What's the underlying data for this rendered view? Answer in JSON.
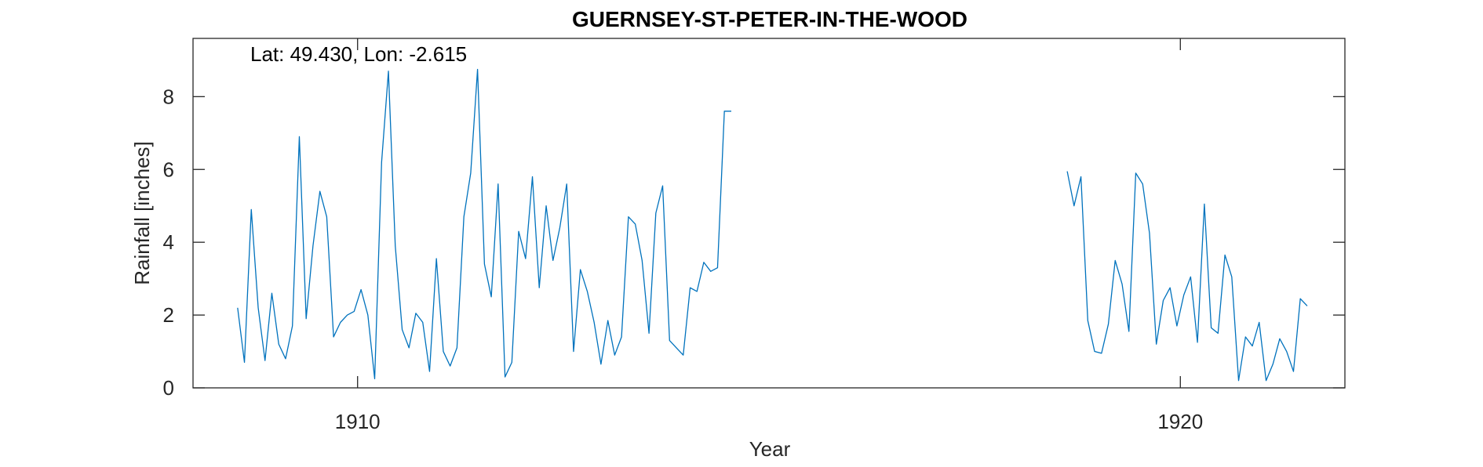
{
  "chart_data": {
    "type": "line",
    "title": "GUERNSEY-ST-PETER-IN-THE-WOOD",
    "annotation": "Lat: 49.430, Lon: -2.615",
    "xlabel": "Year",
    "ylabel": "Rainfall [inches]",
    "xlim": [
      1908.0,
      1922.0
    ],
    "ylim": [
      0,
      9.6
    ],
    "xticks": [
      1910,
      1920
    ],
    "xtick_labels": [
      "1910",
      "1920"
    ],
    "yticks": [
      0,
      2,
      4,
      6,
      8
    ],
    "ytick_labels": [
      "0",
      "2",
      "4",
      "6",
      "8"
    ],
    "grid": false,
    "box": true,
    "series": [
      {
        "color": "#0072BD",
        "segments": [
          {
            "x": [
              1908.542,
              1908.625,
              1908.708,
              1908.792,
              1908.875,
              1908.958,
              1909.042,
              1909.125,
              1909.208,
              1909.292,
              1909.375,
              1909.458,
              1909.542,
              1909.625,
              1909.708,
              1909.792,
              1909.875,
              1909.958,
              1910.042,
              1910.125,
              1910.208,
              1910.292,
              1910.375,
              1910.458,
              1910.542,
              1910.625,
              1910.708,
              1910.792,
              1910.875,
              1910.958,
              1911.042,
              1911.125,
              1911.208,
              1911.292,
              1911.375,
              1911.458,
              1911.542,
              1911.625,
              1911.708,
              1911.792,
              1911.875,
              1911.958,
              1912.042,
              1912.125,
              1912.208,
              1912.292,
              1912.375,
              1912.458,
              1912.542,
              1912.625,
              1912.708,
              1912.792,
              1912.875,
              1912.958,
              1913.042,
              1913.125,
              1913.208,
              1913.292,
              1913.375,
              1913.458,
              1913.542,
              1913.625,
              1913.708,
              1913.792,
              1913.875,
              1913.958,
              1914.042,
              1914.125,
              1914.208,
              1914.292,
              1914.375,
              1914.458,
              1914.542
            ],
            "y": [
              2.2,
              0.7,
              4.9,
              2.2,
              0.75,
              2.6,
              1.2,
              0.8,
              1.7,
              6.9,
              1.9,
              3.9,
              5.4,
              4.7,
              1.4,
              1.8,
              2.0,
              2.1,
              2.7,
              2.0,
              0.25,
              6.2,
              8.7,
              3.9,
              1.6,
              1.1,
              2.05,
              1.8,
              0.45,
              3.55,
              1.0,
              0.6,
              1.1,
              4.7,
              5.9,
              8.75,
              3.4,
              2.5,
              5.6,
              0.3,
              0.7,
              4.3,
              3.55,
              5.8,
              2.75,
              5.0,
              3.5,
              4.4,
              5.6,
              1.0,
              3.25,
              2.65,
              1.8,
              0.65,
              1.85,
              0.9,
              1.4,
              4.7,
              4.5,
              3.5,
              1.5,
              4.8,
              5.55,
              1.3,
              1.1,
              0.9,
              2.75,
              2.65,
              3.45,
              3.2,
              3.3,
              7.6,
              7.6
            ]
          },
          {
            "x": [
              1918.625,
              1918.708,
              1918.792,
              1918.875,
              1918.958,
              1919.042,
              1919.125,
              1919.208,
              1919.292,
              1919.375,
              1919.458,
              1919.542,
              1919.625,
              1919.708,
              1919.792,
              1919.875,
              1919.958,
              1920.042,
              1920.125,
              1920.208,
              1920.292,
              1920.375,
              1920.458,
              1920.542,
              1920.625,
              1920.708,
              1920.792,
              1920.875,
              1920.958,
              1921.042,
              1921.125,
              1921.208,
              1921.292,
              1921.375,
              1921.458,
              1921.542
            ],
            "y": [
              5.95,
              5.0,
              5.8,
              1.85,
              1.0,
              0.95,
              1.75,
              3.5,
              2.85,
              1.55,
              5.9,
              5.6,
              4.25,
              1.2,
              2.4,
              2.75,
              1.7,
              2.55,
              3.05,
              1.25,
              5.05,
              1.65,
              1.5,
              3.65,
              3.05,
              0.2,
              1.4,
              1.15,
              1.8,
              0.2,
              0.65,
              1.35,
              1.0,
              0.45,
              2.45,
              2.25
            ]
          }
        ]
      }
    ]
  }
}
